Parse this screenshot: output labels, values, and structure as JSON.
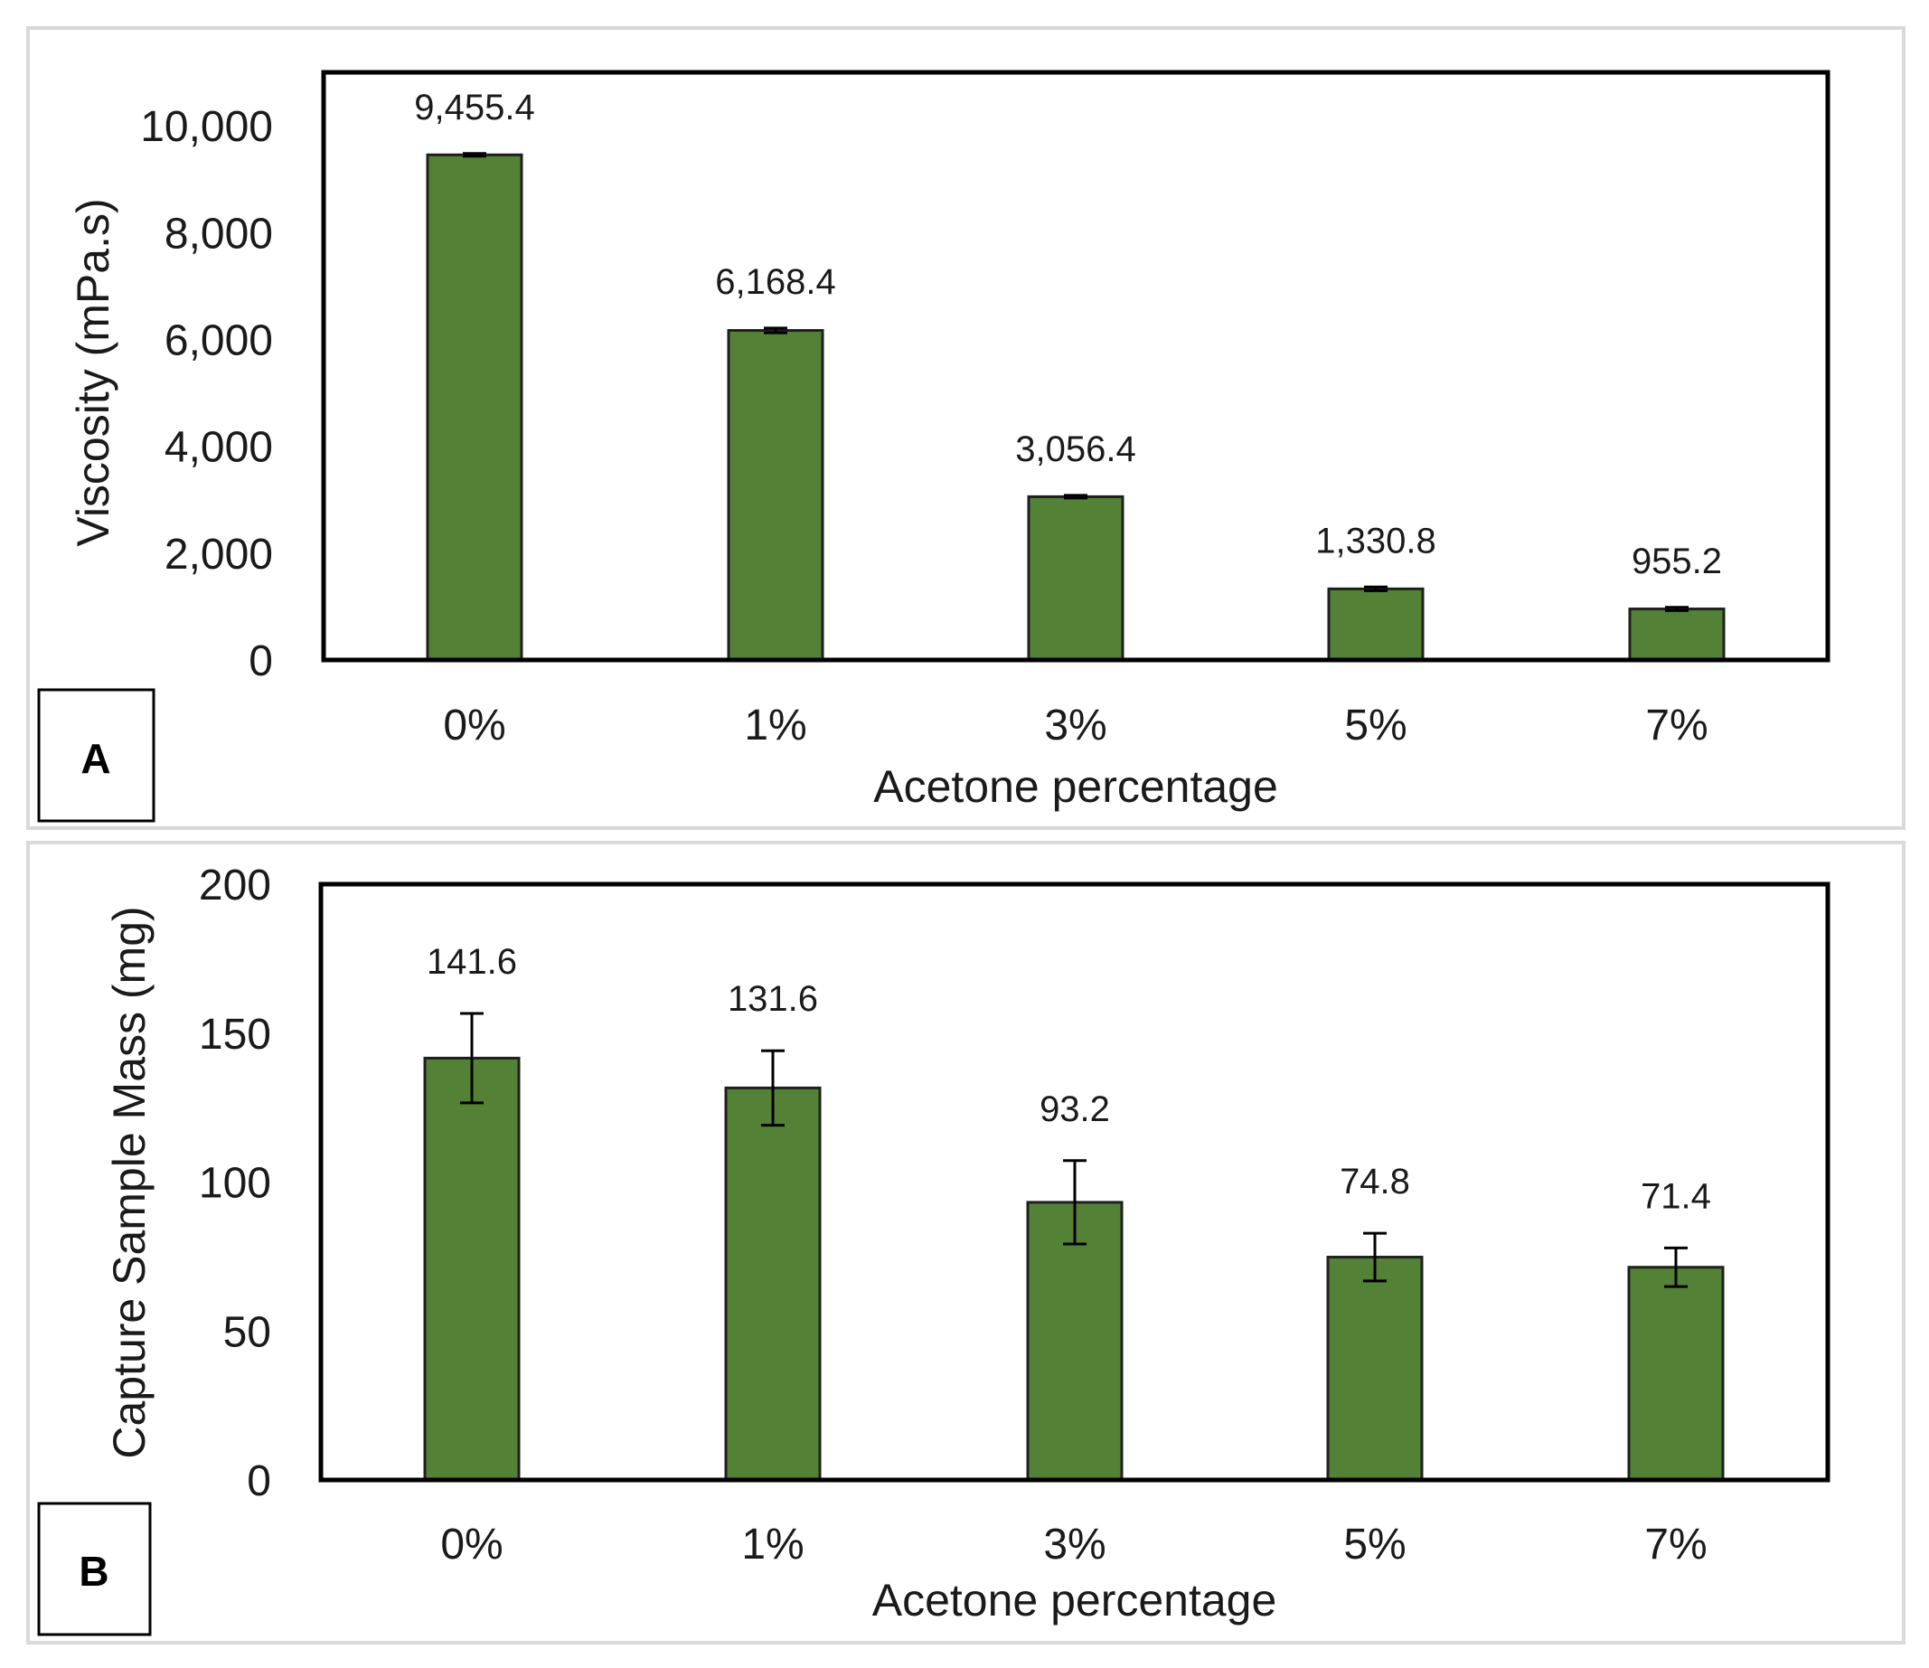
{
  "colors": {
    "bar": "#538135",
    "frame": "#000000",
    "panel_border": "#d9d9d9",
    "text": "#1a1a1a"
  },
  "chart_data": [
    {
      "panel": "A",
      "type": "bar",
      "title": "",
      "xlabel": "Acetone percentage",
      "ylabel": "Viscosity (mPa.s)",
      "ylim": [
        0,
        11000
      ],
      "yticks": [
        0,
        2000,
        4000,
        6000,
        8000,
        10000
      ],
      "ytick_labels": [
        "0",
        "2,000",
        "4,000",
        "6,000",
        "8,000",
        "10,000"
      ],
      "grid": false,
      "categories": [
        "0%",
        "1%",
        "3%",
        "5%",
        "7%"
      ],
      "values": [
        9455.4,
        6168.4,
        3056.4,
        1330.8,
        955.2
      ],
      "errors": [
        25,
        45,
        25,
        35,
        30
      ],
      "data_labels": [
        "9,455.4",
        "6,168.4",
        "3,056.4",
        "1,330.8",
        "955.2"
      ]
    },
    {
      "panel": "B",
      "type": "bar",
      "title": "",
      "xlabel": "Acetone percentage",
      "ylabel": "Capture Sample Mass (mg)",
      "ylim": [
        0,
        200
      ],
      "yticks": [
        0,
        50,
        100,
        150,
        200
      ],
      "ytick_labels": [
        "0",
        "50",
        "100",
        "150",
        "200"
      ],
      "grid": false,
      "categories": [
        "0%",
        "1%",
        "3%",
        "5%",
        "7%"
      ],
      "values": [
        141.6,
        131.6,
        93.2,
        74.8,
        71.4
      ],
      "errors": [
        15,
        12.5,
        14,
        8,
        6.5
      ],
      "data_labels": [
        "141.6",
        "131.6",
        "93.2",
        "74.8",
        "71.4"
      ]
    }
  ]
}
